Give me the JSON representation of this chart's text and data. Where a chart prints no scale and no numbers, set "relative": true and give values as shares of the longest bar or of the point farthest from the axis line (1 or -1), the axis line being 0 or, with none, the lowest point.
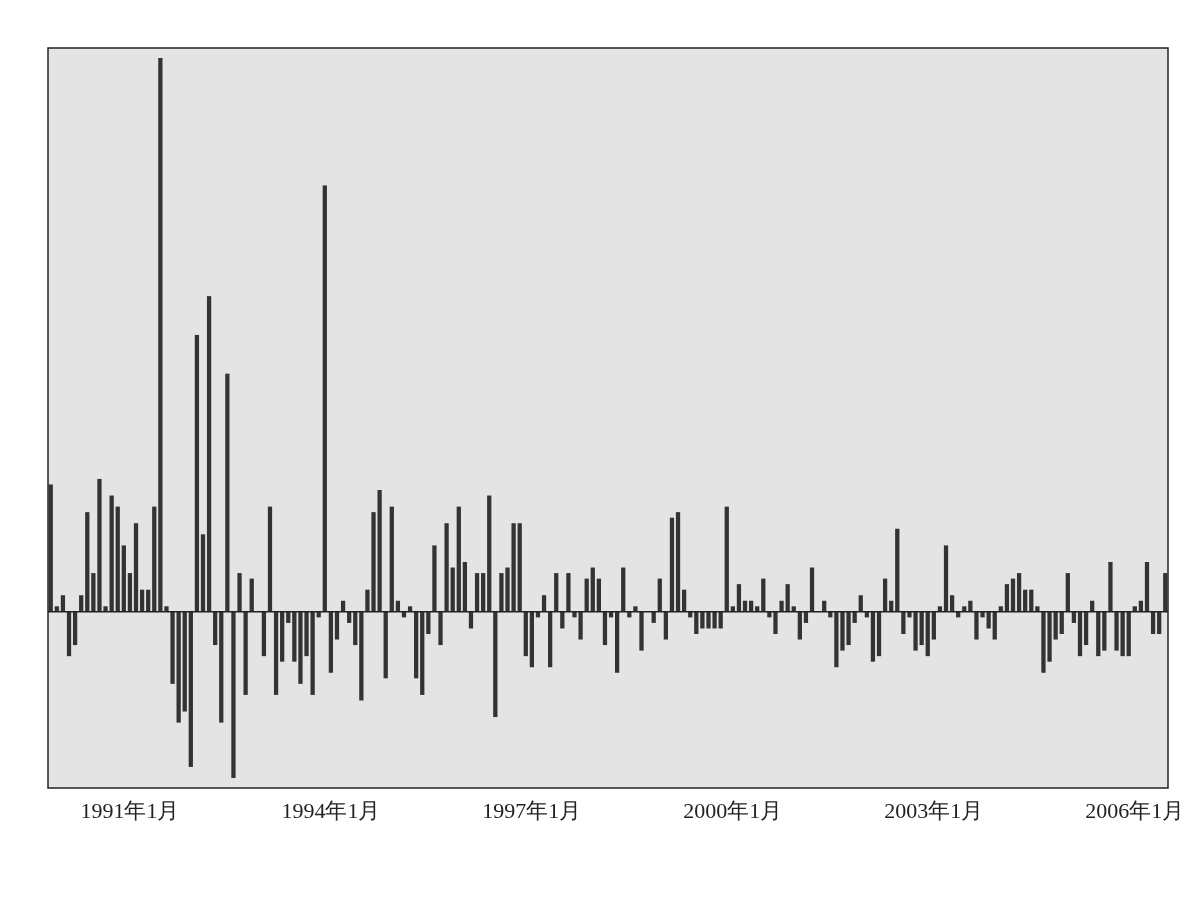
{
  "chart_data": {
    "type": "bar",
    "relative": true,
    "color": "#333333",
    "categories": [
      null,
      null,
      null,
      null,
      null,
      null,
      null,
      null,
      null,
      null,
      null,
      null,
      null,
      "1991年1月",
      null,
      null,
      null,
      null,
      null,
      null,
      null,
      null,
      null,
      null,
      null,
      null,
      null,
      null,
      null,
      null,
      null,
      null,
      null,
      null,
      null,
      null,
      null,
      null,
      null,
      null,
      null,
      null,
      null,
      null,
      null,
      null,
      "1994年1月",
      null,
      null,
      null,
      null,
      null,
      null,
      null,
      null,
      null,
      null,
      null,
      null,
      null,
      null,
      null,
      null,
      null,
      null,
      null,
      null,
      null,
      null,
      null,
      null,
      null,
      null,
      null,
      null,
      null,
      null,
      null,
      null,
      "1997年1月",
      null,
      null,
      null,
      null,
      null,
      null,
      null,
      null,
      null,
      null,
      null,
      null,
      null,
      null,
      null,
      null,
      null,
      null,
      null,
      null,
      null,
      null,
      null,
      null,
      null,
      null,
      null,
      null,
      null,
      null,
      null,
      null,
      "2000年1月",
      null,
      null,
      null,
      null,
      null,
      null,
      null,
      null,
      null,
      null,
      null,
      null,
      null,
      null,
      null,
      null,
      null,
      null,
      null,
      null,
      null,
      null,
      null,
      null,
      null,
      null,
      null,
      null,
      null,
      null,
      null,
      null,
      "2003年1月",
      null,
      null,
      null,
      null,
      null,
      null,
      null,
      null,
      null,
      null,
      null,
      null,
      null,
      null,
      null,
      null,
      null,
      null,
      null,
      null,
      null,
      null,
      null,
      null,
      null,
      null,
      null,
      null,
      null,
      null,
      null,
      null,
      "2006年1月",
      null,
      null,
      null,
      null,
      null
    ],
    "values": [
      0.23,
      0.01,
      0.03,
      -0.08,
      -0.06,
      0.03,
      0.18,
      0.07,
      0.24,
      0.01,
      0.21,
      0.19,
      0.12,
      0.07,
      0.16,
      0.04,
      0.04,
      0.19,
      1,
      0.01,
      -0.13,
      -0.2,
      -0.18,
      -0.28,
      0.5,
      0.14,
      0.57,
      -0.06,
      -0.2,
      0.43,
      -0.3,
      0.07,
      -0.15,
      0.06,
      0,
      -0.08,
      0.19,
      -0.15,
      -0.09,
      -0.02,
      -0.09,
      -0.13,
      -0.08,
      -0.15,
      -0.01,
      0.77,
      -0.11,
      -0.05,
      0.02,
      -0.02,
      -0.06,
      -0.16,
      0.04,
      0.18,
      0.22,
      -0.12,
      0.19,
      0.02,
      -0.01,
      0.01,
      -0.12,
      -0.15,
      -0.04,
      0.12,
      -0.06,
      0.16,
      0.08,
      0.19,
      0.09,
      -0.03,
      0.07,
      0.07,
      0.21,
      -0.19,
      0.07,
      0.08,
      0.16,
      0.16,
      -0.08,
      -0.1,
      -0.01,
      0.03,
      -0.1,
      0.07,
      -0.03,
      0.07,
      -0.01,
      -0.05,
      0.06,
      0.08,
      0.06,
      -0.06,
      -0.01,
      -0.11,
      0.08,
      -0.01,
      0.01,
      -0.07,
      0,
      -0.02,
      0.06,
      -0.05,
      0.17,
      0.18,
      0.04,
      -0.01,
      -0.04,
      -0.03,
      -0.03,
      -0.03,
      -0.03,
      0.19,
      0.01,
      0.05,
      0.02,
      0.02,
      0.01,
      0.06,
      -0.01,
      -0.04,
      0.02,
      0.05,
      0.01,
      -0.05,
      -0.02,
      0.08,
      0,
      0.02,
      -0.01,
      -0.1,
      -0.07,
      -0.06,
      -0.02,
      0.03,
      -0.01,
      -0.09,
      -0.08,
      0.06,
      0.02,
      0.15,
      -0.04,
      -0.01,
      -0.07,
      -0.06,
      -0.08,
      -0.05,
      0.01,
      0.12,
      0.03,
      -0.01,
      0.01,
      0.02,
      -0.05,
      -0.01,
      -0.03,
      -0.05,
      0.01,
      0.05,
      0.06,
      0.07,
      0.04,
      0.04,
      0.01,
      -0.11,
      -0.09,
      -0.05,
      -0.04,
      0.07,
      -0.02,
      -0.08,
      -0.06,
      0.02,
      -0.08,
      -0.07,
      0.09,
      -0.07,
      -0.08,
      -0.08,
      0.01,
      0.02,
      0.09,
      -0.04,
      -0.04,
      0.07
    ]
  }
}
